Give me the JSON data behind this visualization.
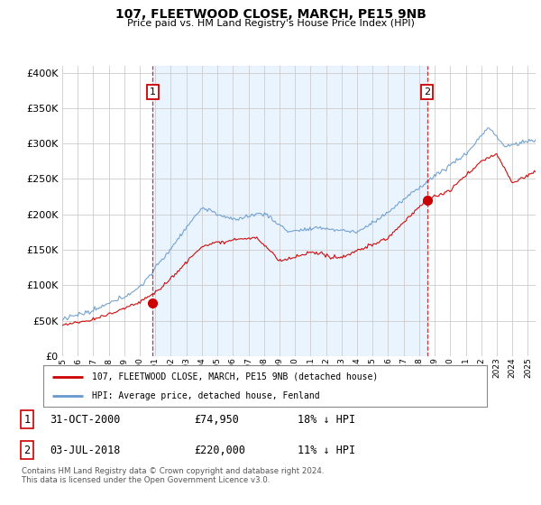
{
  "title": "107, FLEETWOOD CLOSE, MARCH, PE15 9NB",
  "subtitle": "Price paid vs. HM Land Registry's House Price Index (HPI)",
  "ylabel_ticks": [
    "£0",
    "£50K",
    "£100K",
    "£150K",
    "£200K",
    "£250K",
    "£300K",
    "£350K",
    "£400K"
  ],
  "ytick_values": [
    0,
    50000,
    100000,
    150000,
    200000,
    250000,
    300000,
    350000,
    400000
  ],
  "ylim": [
    0,
    410000
  ],
  "xlim_start": 1995.0,
  "xlim_end": 2025.5,
  "red_color": "#cc0000",
  "blue_color": "#6699cc",
  "blue_fill_color": "#ddeeff",
  "marker1_date": 2000.83,
  "marker2_date": 2018.5,
  "marker1_price": 74950,
  "marker2_price": 220000,
  "legend_label_red": "107, FLEETWOOD CLOSE, MARCH, PE15 9NB (detached house)",
  "legend_label_blue": "HPI: Average price, detached house, Fenland",
  "footer": "Contains HM Land Registry data © Crown copyright and database right 2024.\nThis data is licensed under the Open Government Licence v3.0.",
  "background_color": "#ffffff",
  "grid_color": "#cccccc"
}
